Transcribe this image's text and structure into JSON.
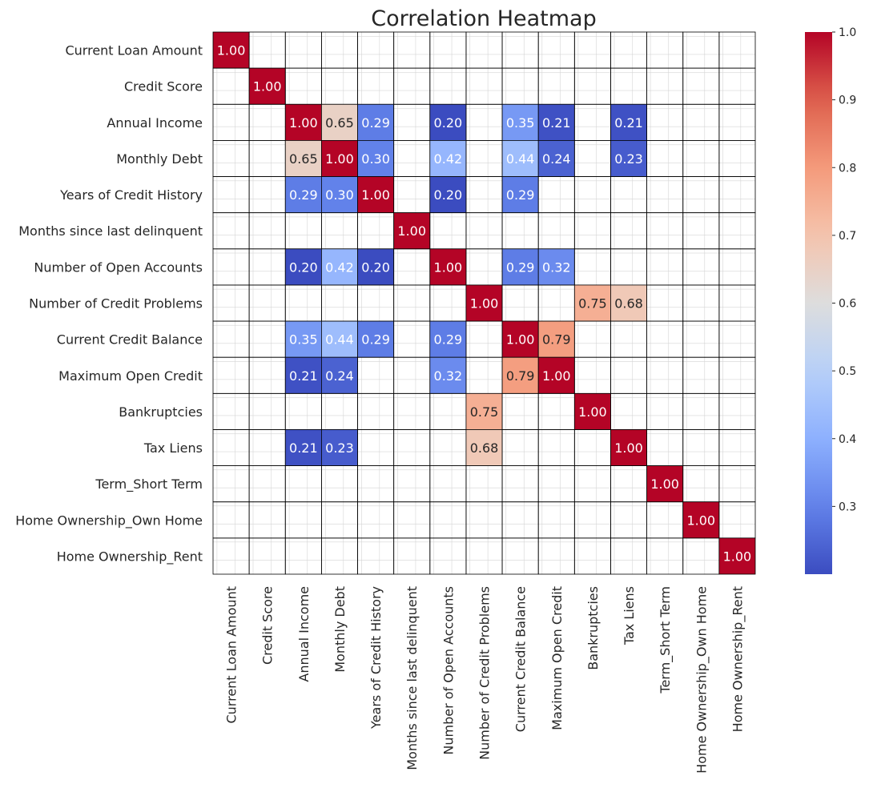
{
  "chart_data": {
    "type": "heatmap",
    "title": "Correlation Heatmap",
    "labels": [
      "Current Loan Amount",
      "Credit Score",
      "Annual Income",
      "Monthly Debt",
      "Years of Credit History",
      "Months since last delinquent",
      "Number of Open Accounts",
      "Number of Credit Problems",
      "Current Credit Balance",
      "Maximum Open Credit",
      "Bankruptcies",
      "Tax Liens",
      "Term_Short Term",
      "Home Ownership_Own Home",
      "Home Ownership_Rent"
    ],
    "values": [
      [
        1.0,
        null,
        null,
        null,
        null,
        null,
        null,
        null,
        null,
        null,
        null,
        null,
        null,
        null,
        null
      ],
      [
        null,
        1.0,
        null,
        null,
        null,
        null,
        null,
        null,
        null,
        null,
        null,
        null,
        null,
        null,
        null
      ],
      [
        null,
        null,
        1.0,
        0.65,
        0.29,
        null,
        0.2,
        null,
        0.35,
        0.21,
        null,
        0.21,
        null,
        null,
        null
      ],
      [
        null,
        null,
        0.65,
        1.0,
        0.3,
        null,
        0.42,
        null,
        0.44,
        0.24,
        null,
        0.23,
        null,
        null,
        null
      ],
      [
        null,
        null,
        0.29,
        0.3,
        1.0,
        null,
        0.2,
        null,
        0.29,
        null,
        null,
        null,
        null,
        null,
        null
      ],
      [
        null,
        null,
        null,
        null,
        null,
        1.0,
        null,
        null,
        null,
        null,
        null,
        null,
        null,
        null,
        null
      ],
      [
        null,
        null,
        0.2,
        0.42,
        0.2,
        null,
        1.0,
        null,
        0.29,
        0.32,
        null,
        null,
        null,
        null,
        null
      ],
      [
        null,
        null,
        null,
        null,
        null,
        null,
        null,
        1.0,
        null,
        null,
        0.75,
        0.68,
        null,
        null,
        null
      ],
      [
        null,
        null,
        0.35,
        0.44,
        0.29,
        null,
        0.29,
        null,
        1.0,
        0.79,
        null,
        null,
        null,
        null,
        null
      ],
      [
        null,
        null,
        0.21,
        0.24,
        null,
        null,
        0.32,
        null,
        0.79,
        1.0,
        null,
        null,
        null,
        null,
        null
      ],
      [
        null,
        null,
        null,
        null,
        null,
        null,
        null,
        0.75,
        null,
        null,
        1.0,
        null,
        null,
        null,
        null
      ],
      [
        null,
        null,
        0.21,
        0.23,
        null,
        null,
        null,
        0.68,
        null,
        null,
        null,
        1.0,
        null,
        null,
        null
      ],
      [
        null,
        null,
        null,
        null,
        null,
        null,
        null,
        null,
        null,
        null,
        null,
        null,
        1.0,
        null,
        null
      ],
      [
        null,
        null,
        null,
        null,
        null,
        null,
        null,
        null,
        null,
        null,
        null,
        null,
        null,
        1.0,
        null
      ],
      [
        null,
        null,
        null,
        null,
        null,
        null,
        null,
        null,
        null,
        null,
        null,
        null,
        null,
        null,
        1.0
      ]
    ],
    "colorbar": {
      "colormap": "coolwarm",
      "min": 0.2,
      "max": 1.0,
      "ticks": [
        "0.3",
        "0.4",
        "0.5",
        "0.6",
        "0.7",
        "0.8",
        "0.9",
        "1.0"
      ]
    },
    "grid": true
  }
}
